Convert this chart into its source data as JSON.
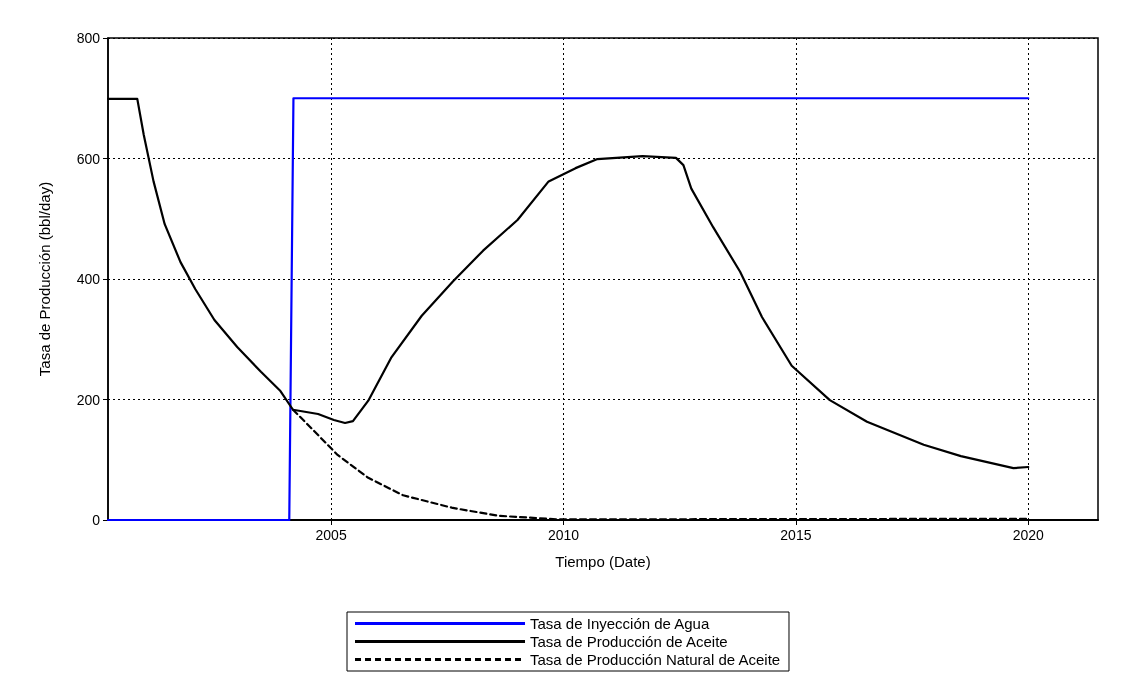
{
  "chart_data": {
    "type": "line",
    "xlabel": "Tiempo (Date)",
    "ylabel": "Tasa de Producción (bbl/day)",
    "xlim": [
      2000.2,
      2021.5
    ],
    "xticks": [
      2005,
      2010,
      2015,
      2020
    ],
    "ylim": [
      0,
      800
    ],
    "yticks": [
      0,
      200,
      400,
      600,
      800
    ],
    "grid": true,
    "legend": "bottom",
    "marker": "none",
    "series": [
      {
        "name": "Tasa de Inyección de Agua",
        "color": "#0000ff",
        "line_style": "solid",
        "x": [
          2000.2,
          2004.1,
          2004.19,
          2020
        ],
        "values": [
          0,
          0,
          700,
          700
        ]
      },
      {
        "name": "Tasa de Producción de Aceite",
        "color": "#000000",
        "line_style": "solid",
        "x": [
          2000.2,
          2000.83,
          2000.97,
          2001.18,
          2001.42,
          2001.76,
          2002.08,
          2002.49,
          2002.98,
          2003.49,
          2003.91,
          2004.18,
          2004.72,
          2005.06,
          2005.3,
          2005.47,
          2005.8,
          2006.29,
          2006.95,
          2007.62,
          2008.27,
          2009.01,
          2009.68,
          2010.26,
          2010.73,
          2011.7,
          2012.42,
          2012.58,
          2012.75,
          2013.22,
          2013.8,
          2014.27,
          2014.91,
          2015.73,
          2016.53,
          2017.75,
          2018.55,
          2019.68,
          2020
        ],
        "values": [
          699,
          699,
          639,
          562,
          491,
          428,
          383,
          332,
          287,
          246,
          214,
          183,
          176,
          166,
          161,
          164,
          198,
          269,
          339,
          396,
          447,
          498,
          562,
          584,
          599,
          604,
          601,
          589,
          550,
          486,
          412,
          337,
          256,
          199,
          163,
          125,
          106,
          86,
          88
        ]
      },
      {
        "name": "Tasa de Producción Natural de Aceite",
        "color": "#000000",
        "line_style": "dashed",
        "x": [
          2004.18,
          2004.49,
          2005.14,
          2005.8,
          2006.55,
          2007.62,
          2008.6,
          2009.9,
          2020
        ],
        "values": [
          183,
          159,
          108,
          70,
          41,
          20,
          7,
          1,
          2
        ]
      }
    ]
  }
}
